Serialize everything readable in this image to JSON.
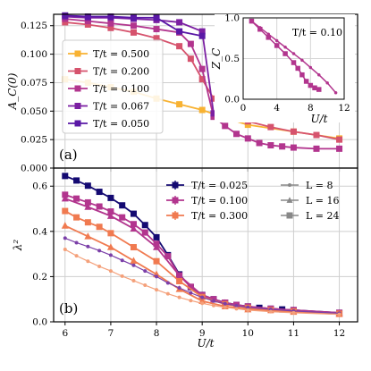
{
  "chart_data": [
    {
      "id": "a",
      "type": "line",
      "panel_label": "(a)",
      "ylabel": "A_C(0)",
      "xlim": [
        5.75,
        12.4
      ],
      "ylim": [
        0,
        0.135
      ],
      "yticks": [
        "0.000",
        "0.025",
        "0.050",
        "0.075",
        "0.100",
        "0.125"
      ],
      "ytick_values": [
        0,
        0.025,
        0.05,
        0.075,
        0.1,
        0.125
      ],
      "grid": true,
      "legend": "top-left",
      "series": [
        {
          "name": "T/t = 0.500",
          "color": "#f8b232",
          "marker": "square",
          "x": [
            6.0,
            6.5,
            7.0,
            7.5,
            8.0,
            8.5,
            9.0,
            9.5,
            10.0,
            11.0,
            12.0
          ],
          "y": [
            0.078,
            0.075,
            0.071,
            0.067,
            0.061,
            0.056,
            0.051,
            0.044,
            0.038,
            0.032,
            0.026
          ]
        },
        {
          "name": "T/t = 0.200",
          "color": "#d6536d",
          "marker": "square",
          "x": [
            6.0,
            6.5,
            7.0,
            7.5,
            8.0,
            8.5,
            8.75,
            9.0,
            9.25,
            9.5,
            10.0,
            10.5,
            11.0,
            11.5,
            12.0
          ],
          "y": [
            0.128,
            0.126,
            0.123,
            0.119,
            0.114,
            0.107,
            0.096,
            0.078,
            0.061,
            0.048,
            0.041,
            0.036,
            0.032,
            0.029,
            0.025
          ]
        },
        {
          "name": "T/t = 0.100",
          "color": "#b2358e",
          "marker": "square",
          "x": [
            6.0,
            6.5,
            7.0,
            7.5,
            8.0,
            8.5,
            8.75,
            9.0,
            9.25,
            9.5,
            9.75,
            10.0,
            10.25,
            10.5,
            10.75,
            11.0,
            11.5,
            12.0
          ],
          "y": [
            0.131,
            0.129,
            0.127,
            0.125,
            0.122,
            0.119,
            0.109,
            0.087,
            0.045,
            0.037,
            0.03,
            0.026,
            0.022,
            0.02,
            0.019,
            0.018,
            0.017,
            0.017
          ]
        },
        {
          "name": "T/t = 0.067",
          "color": "#7b1fa2",
          "marker": "square",
          "x": [
            6.0,
            6.5,
            7.0,
            7.5,
            8.0,
            8.5,
            9.0,
            9.25
          ],
          "y": [
            0.133,
            0.132,
            0.132,
            0.131,
            0.13,
            0.128,
            0.12,
            0.048
          ]
        },
        {
          "name": "T/t = 0.050",
          "color": "#5a18a6",
          "marker": "square",
          "x": [
            6.0,
            6.5,
            7.0,
            7.5,
            8.0,
            8.5,
            9.0
          ],
          "y": [
            0.134,
            0.133,
            0.133,
            0.132,
            0.132,
            0.12,
            0.116
          ]
        }
      ],
      "inset": {
        "type": "line",
        "title": "T/t = 0.10",
        "xlabel": "U/t",
        "ylabel": "Z_C",
        "xlim": [
          0,
          12
        ],
        "ylim": [
          0,
          1
        ],
        "xticks": [
          "0",
          "4",
          "8",
          "12"
        ],
        "xtick_values": [
          0,
          4,
          8,
          12
        ],
        "yticks": [
          "0.0",
          "0.5",
          "1.0"
        ],
        "ytick_values": [
          0,
          0.5,
          1.0
        ],
        "series": [
          {
            "name": "",
            "color": "#b2358e",
            "marker": "square",
            "x": [
              1,
              2,
              3,
              4,
              5,
              6,
              6.5,
              7,
              7.5,
              8,
              8.5,
              9
            ],
            "y": [
              0.96,
              0.86,
              0.76,
              0.66,
              0.56,
              0.45,
              0.38,
              0.3,
              0.22,
              0.17,
              0.14,
              0.12
            ]
          },
          {
            "name": "",
            "color": "#b2358e",
            "marker": "dot",
            "x": [
              1,
              2,
              3,
              4,
              5,
              6,
              7,
              8,
              9,
              10,
              11
            ],
            "y": [
              0.96,
              0.88,
              0.8,
              0.72,
              0.64,
              0.56,
              0.48,
              0.39,
              0.3,
              0.2,
              0.08
            ]
          }
        ]
      }
    },
    {
      "id": "b",
      "type": "line",
      "panel_label": "(b)",
      "xlabel": "U/t",
      "ylabel": "λ²",
      "xlim": [
        5.75,
        12.4
      ],
      "ylim": [
        0,
        0.68
      ],
      "xticks": [
        "6",
        "7",
        "8",
        "9",
        "10",
        "11",
        "12"
      ],
      "xtick_values": [
        6,
        7,
        8,
        9,
        10,
        11,
        12
      ],
      "yticks": [
        "0.0",
        "0.2",
        "0.4",
        "0.6"
      ],
      "ytick_values": [
        0,
        0.2,
        0.4,
        0.6
      ],
      "grid": true,
      "legend": "top-right",
      "legend_temperature": [
        "T/t = 0.025",
        "T/t = 0.100",
        "T/t = 0.300"
      ],
      "legend_size": [
        "L = 8",
        "L = 16",
        "L = 24"
      ],
      "series": [
        {
          "name": "T/t = 0.025, L = 24",
          "color": "#140a72",
          "marker": "square",
          "x": [
            6.0,
            6.25,
            6.5,
            6.75,
            7.0,
            7.25,
            7.5,
            7.75,
            8.0,
            8.25,
            8.5,
            8.75,
            9.0,
            9.25,
            9.5,
            9.75,
            10.0,
            10.25,
            10.5,
            10.75,
            11.0,
            12.0
          ],
          "y": [
            0.645,
            0.625,
            0.602,
            0.575,
            0.548,
            0.515,
            0.478,
            0.428,
            0.374,
            0.295,
            0.21,
            0.153,
            0.119,
            0.1,
            0.085,
            0.075,
            0.068,
            0.062,
            0.058,
            0.055,
            0.052,
            0.04
          ]
        },
        {
          "name": "T/t = 0.100, L = 24",
          "color": "#b2358e",
          "marker": "square",
          "x": [
            6.0,
            6.25,
            6.5,
            6.75,
            7.0,
            7.25,
            7.5,
            7.75,
            8.0,
            8.25,
            8.5,
            8.75,
            9.0,
            9.25,
            9.5,
            9.75,
            10.0,
            10.5,
            11.0,
            12.0
          ],
          "y": [
            0.562,
            0.545,
            0.528,
            0.51,
            0.488,
            0.462,
            0.432,
            0.395,
            0.345,
            0.29,
            0.205,
            0.155,
            0.118,
            0.1,
            0.085,
            0.075,
            0.068,
            0.058,
            0.052,
            0.04
          ]
        },
        {
          "name": "T/t = 0.100, L = 16",
          "color": "#b2358e",
          "marker": "triangle",
          "x": [
            6.0,
            6.5,
            7.0,
            7.5,
            8.0,
            8.5,
            9.0,
            9.5,
            10.0,
            11.0,
            12.0
          ],
          "y": [
            0.545,
            0.508,
            0.468,
            0.412,
            0.33,
            0.205,
            0.118,
            0.083,
            0.066,
            0.051,
            0.039
          ]
        },
        {
          "name": "T/t = 0.300, L = 24",
          "color": "#f07a50",
          "marker": "square",
          "x": [
            6.0,
            6.25,
            6.5,
            6.75,
            7.0,
            7.5,
            8.0,
            8.5,
            9.0,
            9.5,
            10.0,
            10.5,
            11.0,
            12.0
          ],
          "y": [
            0.49,
            0.462,
            0.44,
            0.42,
            0.392,
            0.33,
            0.268,
            0.18,
            0.11,
            0.078,
            0.062,
            0.052,
            0.046,
            0.036
          ]
        },
        {
          "name": "T/t = 0.300, L = 16",
          "color": "#f07a50",
          "marker": "triangle",
          "x": [
            6.0,
            6.5,
            7.0,
            7.5,
            8.0,
            8.5,
            9.0,
            9.5,
            10.0,
            11.0,
            12.0
          ],
          "y": [
            0.425,
            0.378,
            0.33,
            0.27,
            0.21,
            0.145,
            0.092,
            0.068,
            0.055,
            0.044,
            0.034
          ]
        },
        {
          "name": "T/t = 0.100, L = 8",
          "color": "#7b3fa8",
          "marker": "dot",
          "x": [
            6.0,
            6.25,
            6.5,
            6.75,
            7.0,
            7.25,
            7.5,
            7.75,
            8.0,
            8.25,
            8.5,
            8.75,
            9.0,
            9.25,
            9.5,
            9.75,
            10.0,
            10.5,
            11.0,
            12.0
          ],
          "y": [
            0.37,
            0.35,
            0.333,
            0.315,
            0.295,
            0.272,
            0.25,
            0.225,
            0.2,
            0.172,
            0.15,
            0.128,
            0.108,
            0.092,
            0.08,
            0.071,
            0.064,
            0.055,
            0.048,
            0.038
          ]
        },
        {
          "name": "T/t = 0.300, L = 8",
          "color": "#f4a07a",
          "marker": "dot",
          "x": [
            6.0,
            6.25,
            6.5,
            6.75,
            7.0,
            7.25,
            7.5,
            7.75,
            8.0,
            8.25,
            8.5,
            8.75,
            9.0,
            9.25,
            9.5,
            9.75,
            10.0,
            10.5,
            11.0,
            12.0
          ],
          "y": [
            0.32,
            0.292,
            0.268,
            0.245,
            0.225,
            0.202,
            0.182,
            0.162,
            0.142,
            0.124,
            0.108,
            0.094,
            0.082,
            0.072,
            0.064,
            0.058,
            0.052,
            0.045,
            0.04,
            0.033
          ]
        }
      ]
    }
  ]
}
